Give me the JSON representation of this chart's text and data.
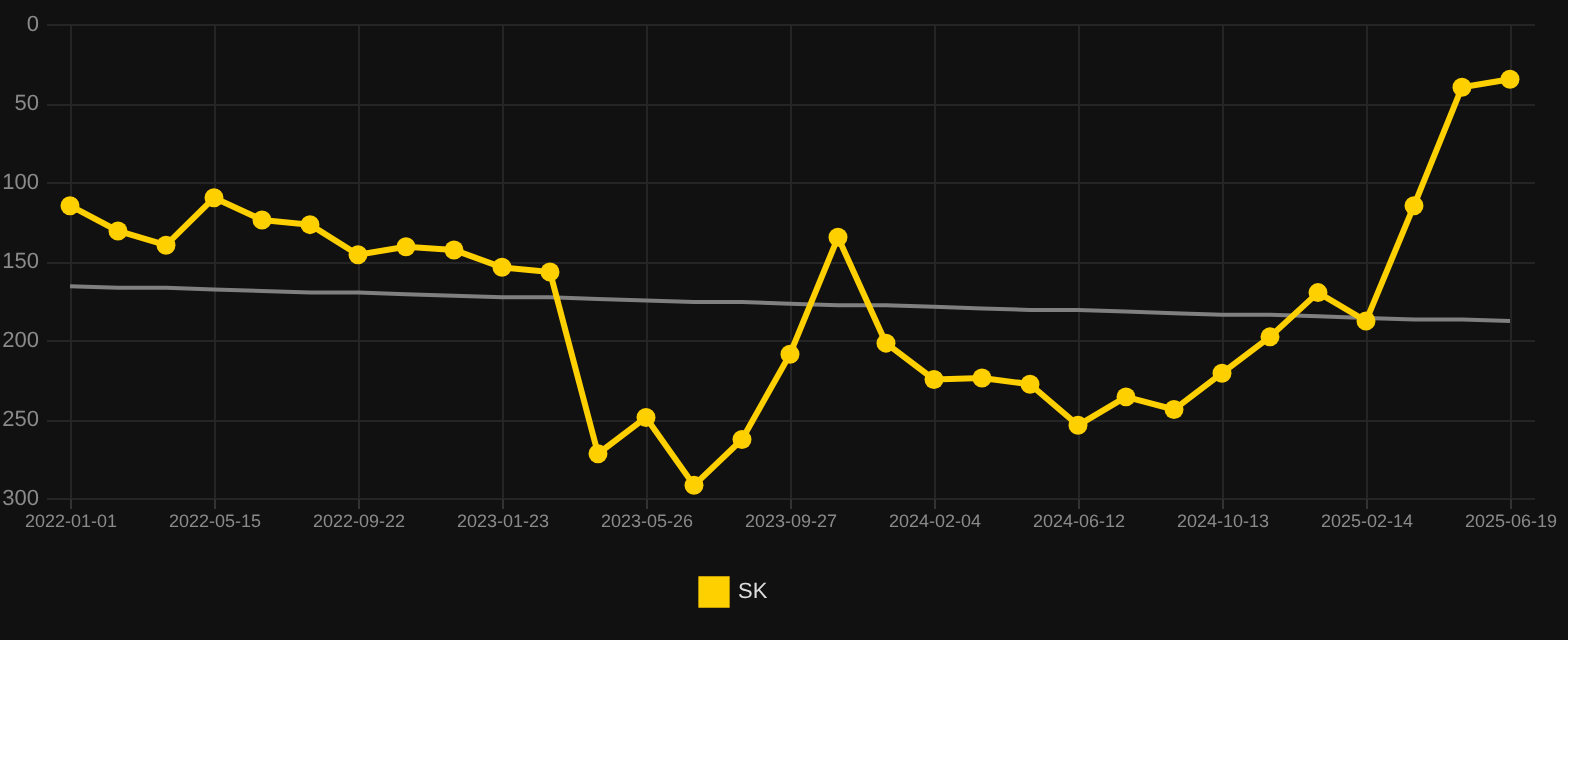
{
  "chart_data": {
    "type": "line",
    "categories": [
      "2022-01-01",
      null,
      null,
      "2022-05-15",
      null,
      null,
      "2022-09-22",
      null,
      null,
      "2023-01-23",
      null,
      null,
      "2023-05-26",
      null,
      null,
      "2023-09-27",
      null,
      null,
      "2024-02-04",
      null,
      null,
      "2024-06-12",
      null,
      null,
      "2024-10-13",
      null,
      null,
      "2025-02-14",
      null,
      null,
      "2025-06-19"
    ],
    "series": [
      {
        "name": "SK",
        "color": "#ffd000",
        "marker": "circle",
        "values": [
          115,
          131,
          140,
          110,
          124,
          127,
          146,
          141,
          143,
          154,
          157,
          272,
          249,
          292,
          263,
          209,
          135,
          202,
          225,
          224,
          228,
          254,
          236,
          244,
          221,
          198,
          170,
          188,
          115,
          40,
          35
        ]
      },
      {
        "type": "line",
        "color": "#808080",
        "marker": "none",
        "values": [
          166,
          167,
          167,
          168,
          169,
          170,
          170,
          171,
          172,
          173,
          173,
          174,
          175,
          176,
          176,
          177,
          178,
          178,
          179,
          180,
          181,
          181,
          182,
          183,
          184,
          184,
          185,
          186,
          187,
          187,
          188
        ]
      }
    ],
    "ylim": [
      300,
      0
    ],
    "yticks": [
      0,
      50,
      100,
      150,
      200,
      250,
      300
    ],
    "grid": true,
    "legend": "bottom"
  }
}
